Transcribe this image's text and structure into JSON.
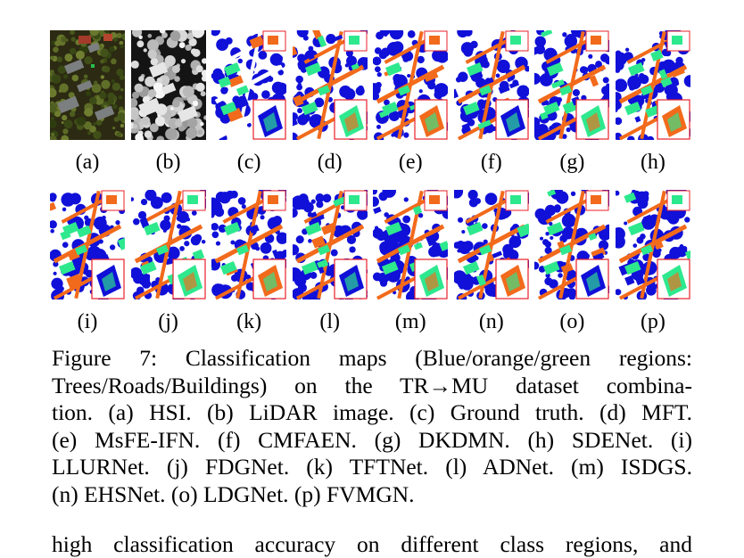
{
  "figure": {
    "panels": [
      {
        "label": "(a)",
        "kind": "hsi"
      },
      {
        "label": "(b)",
        "kind": "lidar"
      },
      {
        "label": "(c)",
        "kind": "map"
      },
      {
        "label": "(d)",
        "kind": "map"
      },
      {
        "label": "(e)",
        "kind": "map"
      },
      {
        "label": "(f)",
        "kind": "map"
      },
      {
        "label": "(g)",
        "kind": "map"
      },
      {
        "label": "(h)",
        "kind": "map"
      },
      {
        "label": "(i)",
        "kind": "map"
      },
      {
        "label": "(j)",
        "kind": "map"
      },
      {
        "label": "(k)",
        "kind": "map"
      },
      {
        "label": "(l)",
        "kind": "map"
      },
      {
        "label": "(m)",
        "kind": "map"
      },
      {
        "label": "(n)",
        "kind": "map"
      },
      {
        "label": "(o)",
        "kind": "map"
      },
      {
        "label": "(p)",
        "kind": "map"
      }
    ],
    "colors": {
      "trees": "#1010d8",
      "roads": "#f26a1b",
      "buildings": "#2ee88e",
      "background": "#ffffff",
      "inset_border": "#e8202a"
    }
  },
  "caption": {
    "lines": [
      "Figure 7: Classification maps (Blue/orange/green regions:",
      "Trees/Roads/Buildings) on the TR→MU dataset combina-",
      "tion. (a) HSI. (b) LiDAR image. (c) Ground truth. (d) MFT.",
      "(e) MsFE-IFN. (f) CMFAEN. (g) DKDMN. (h) SDENet. (i)",
      "LLURNet. (j) FDGNet. (k) TFTNet. (l) ADNet. (m) ISDGS.",
      "(n) EHSNet. (o) LDGNet. (p) FVMGN."
    ]
  },
  "body_text": {
    "partial_line": "high classification accuracy on different class regions, and"
  }
}
